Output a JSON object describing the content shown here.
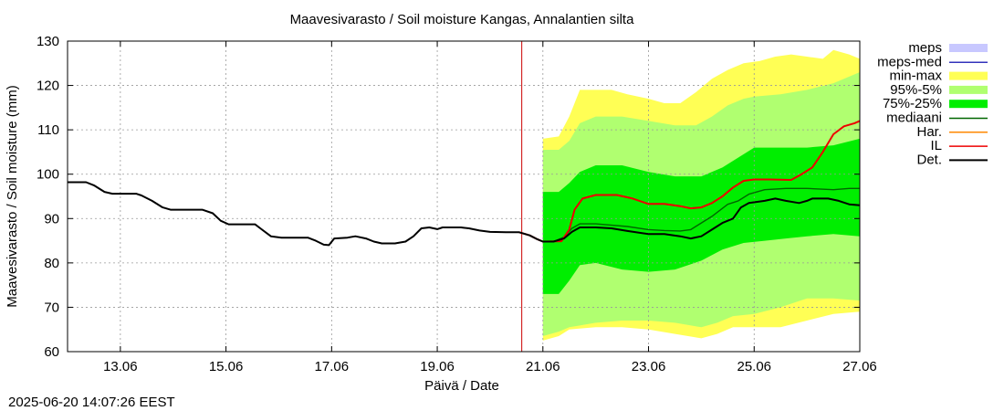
{
  "chart_data": {
    "type": "area",
    "title": "Maavesivarasto / Soil moisture   Kangas, Annalantien silta",
    "xlabel": "Päivä / Date",
    "ylabel": "Maavesivarasto / Soil moisture (mm)",
    "ylim": [
      60,
      130
    ],
    "yticks": [
      60,
      70,
      80,
      90,
      100,
      110,
      120,
      130
    ],
    "xlim": [
      12.0,
      27.0
    ],
    "xticks": [
      {
        "label": "13.06",
        "x": 13.0
      },
      {
        "label": "15.06",
        "x": 15.0
      },
      {
        "label": "17.06",
        "x": 17.0
      },
      {
        "label": "19.06",
        "x": 19.0
      },
      {
        "label": "21.06",
        "x": 21.0
      },
      {
        "label": "23.06",
        "x": 23.0
      },
      {
        "label": "25.06",
        "x": 25.0
      },
      {
        "label": "27.06",
        "x": 27.0
      }
    ],
    "grid": true,
    "legend_position": "right",
    "forecast_start_x": 20.6,
    "timestamp": "2025-06-20 14:07:26 EEST",
    "legend": [
      {
        "name": "meps",
        "kind": "band",
        "color": "#c8c8ff"
      },
      {
        "name": "meps-med",
        "kind": "line",
        "color": "#3333bb"
      },
      {
        "name": "min-max",
        "kind": "band",
        "color": "#ffff55"
      },
      {
        "name": "95%-5%",
        "kind": "band",
        "color": "#b0ff70"
      },
      {
        "name": "75%-25%",
        "kind": "band",
        "color": "#00ee00"
      },
      {
        "name": "mediaani",
        "kind": "line",
        "color": "#006600"
      },
      {
        "name": "Har.",
        "kind": "line",
        "color": "#ff8800"
      },
      {
        "name": "IL",
        "kind": "line",
        "color": "#ee0000"
      },
      {
        "name": "Det.",
        "kind": "line",
        "color": "#000000"
      }
    ],
    "bands": [
      {
        "name": "min-max",
        "color": "#ffff55",
        "upper": [
          [
            21.0,
            108
          ],
          [
            21.3,
            108.5
          ],
          [
            21.5,
            113
          ],
          [
            21.7,
            119
          ],
          [
            22.0,
            119
          ],
          [
            22.3,
            119
          ],
          [
            22.6,
            118
          ],
          [
            23.0,
            117
          ],
          [
            23.3,
            116
          ],
          [
            23.6,
            116
          ],
          [
            23.9,
            118.5
          ],
          [
            24.2,
            121.5
          ],
          [
            24.5,
            123.5
          ],
          [
            24.8,
            125
          ],
          [
            25.1,
            125.5
          ],
          [
            25.4,
            126.5
          ],
          [
            25.7,
            127
          ],
          [
            26.0,
            126.5
          ],
          [
            26.3,
            126
          ],
          [
            26.5,
            128
          ],
          [
            26.8,
            127
          ],
          [
            27.0,
            126
          ]
        ],
        "lower": [
          [
            21.0,
            62.5
          ],
          [
            21.3,
            63.5
          ],
          [
            21.5,
            65
          ],
          [
            22.0,
            65.5
          ],
          [
            22.5,
            65.5
          ],
          [
            23.0,
            65
          ],
          [
            23.5,
            64
          ],
          [
            24.0,
            63
          ],
          [
            24.3,
            64
          ],
          [
            24.6,
            65.5
          ],
          [
            25.0,
            65.5
          ],
          [
            25.5,
            65.5
          ],
          [
            26.0,
            67
          ],
          [
            26.5,
            68.5
          ],
          [
            27.0,
            69
          ]
        ]
      },
      {
        "name": "95%-5%",
        "color": "#b0ff70",
        "upper": [
          [
            21.0,
            105.5
          ],
          [
            21.3,
            105.5
          ],
          [
            21.5,
            107.5
          ],
          [
            21.7,
            111.5
          ],
          [
            22.0,
            113
          ],
          [
            22.5,
            113
          ],
          [
            23.0,
            112
          ],
          [
            23.5,
            111
          ],
          [
            23.9,
            111
          ],
          [
            24.2,
            113
          ],
          [
            24.5,
            115.5
          ],
          [
            24.8,
            117
          ],
          [
            25.0,
            117.5
          ],
          [
            25.5,
            118
          ],
          [
            26.0,
            119
          ],
          [
            26.5,
            120.5
          ],
          [
            27.0,
            123
          ]
        ],
        "lower": [
          [
            21.0,
            63.5
          ],
          [
            21.3,
            64.5
          ],
          [
            21.5,
            65.5
          ],
          [
            22.0,
            66.5
          ],
          [
            22.5,
            67
          ],
          [
            23.0,
            67
          ],
          [
            23.5,
            66.5
          ],
          [
            24.0,
            65.5
          ],
          [
            24.3,
            66.5
          ],
          [
            24.6,
            68
          ],
          [
            25.0,
            68.5
          ],
          [
            25.5,
            70
          ],
          [
            26.0,
            72
          ],
          [
            26.5,
            72
          ],
          [
            27.0,
            71.5
          ]
        ]
      },
      {
        "name": "75%-25%",
        "color": "#00ee00",
        "upper": [
          [
            21.0,
            96
          ],
          [
            21.3,
            96
          ],
          [
            21.5,
            98
          ],
          [
            21.7,
            100.5
          ],
          [
            22.0,
            102
          ],
          [
            22.5,
            102
          ],
          [
            23.0,
            100.5
          ],
          [
            23.5,
            99.5
          ],
          [
            24.0,
            99.5
          ],
          [
            24.4,
            101.5
          ],
          [
            24.8,
            104.5
          ],
          [
            25.0,
            106
          ],
          [
            25.5,
            106
          ],
          [
            26.0,
            106
          ],
          [
            26.5,
            106.5
          ],
          [
            27.0,
            108
          ]
        ],
        "lower": [
          [
            21.0,
            73
          ],
          [
            21.3,
            73
          ],
          [
            21.5,
            76
          ],
          [
            21.7,
            79.5
          ],
          [
            22.0,
            80
          ],
          [
            22.5,
            78.5
          ],
          [
            23.0,
            78
          ],
          [
            23.5,
            78.5
          ],
          [
            24.0,
            80.5
          ],
          [
            24.4,
            83
          ],
          [
            24.8,
            84.5
          ],
          [
            25.2,
            85
          ],
          [
            25.6,
            85.5
          ],
          [
            26.0,
            86
          ],
          [
            26.5,
            86.5
          ],
          [
            27.0,
            86
          ]
        ]
      }
    ],
    "series": [
      {
        "name": "Det.",
        "color": "#000000",
        "width": 2,
        "points": [
          [
            12.0,
            98.2
          ],
          [
            12.35,
            98.2
          ],
          [
            12.5,
            97.5
          ],
          [
            12.7,
            96
          ],
          [
            12.85,
            95.6
          ],
          [
            13.3,
            95.6
          ],
          [
            13.4,
            95.2
          ],
          [
            13.6,
            94
          ],
          [
            13.8,
            92.5
          ],
          [
            13.95,
            92
          ],
          [
            14.55,
            92
          ],
          [
            14.75,
            91.2
          ],
          [
            14.9,
            89.5
          ],
          [
            15.05,
            88.7
          ],
          [
            15.55,
            88.7
          ],
          [
            15.65,
            87.8
          ],
          [
            15.85,
            86
          ],
          [
            16.05,
            85.7
          ],
          [
            16.55,
            85.7
          ],
          [
            16.7,
            85
          ],
          [
            16.85,
            84.1
          ],
          [
            16.95,
            84
          ],
          [
            17.05,
            85.5
          ],
          [
            17.3,
            85.7
          ],
          [
            17.45,
            86
          ],
          [
            17.65,
            85.5
          ],
          [
            17.8,
            84.8
          ],
          [
            17.95,
            84.4
          ],
          [
            18.2,
            84.4
          ],
          [
            18.4,
            84.8
          ],
          [
            18.55,
            86
          ],
          [
            18.7,
            87.8
          ],
          [
            18.85,
            88
          ],
          [
            19.0,
            87.6
          ],
          [
            19.1,
            88
          ],
          [
            19.45,
            88
          ],
          [
            19.6,
            87.8
          ],
          [
            19.8,
            87.3
          ],
          [
            20.0,
            87
          ],
          [
            20.3,
            86.9
          ],
          [
            20.55,
            86.9
          ],
          [
            20.75,
            86.2
          ],
          [
            20.9,
            85.3
          ],
          [
            21.0,
            84.8
          ],
          [
            21.2,
            84.8
          ],
          [
            21.4,
            85.5
          ],
          [
            21.55,
            87
          ],
          [
            21.7,
            88
          ],
          [
            22.0,
            88
          ],
          [
            22.3,
            87.8
          ],
          [
            22.6,
            87.2
          ],
          [
            23.0,
            86.5
          ],
          [
            23.3,
            86.5
          ],
          [
            23.6,
            86
          ],
          [
            23.8,
            85.5
          ],
          [
            24.0,
            86
          ],
          [
            24.2,
            87.5
          ],
          [
            24.4,
            89
          ],
          [
            24.6,
            90
          ],
          [
            24.75,
            92.5
          ],
          [
            24.9,
            93.5
          ],
          [
            25.2,
            94
          ],
          [
            25.4,
            94.5
          ],
          [
            25.6,
            94
          ],
          [
            25.85,
            93.5
          ],
          [
            26.0,
            94
          ],
          [
            26.1,
            94.5
          ],
          [
            26.4,
            94.5
          ],
          [
            26.6,
            94
          ],
          [
            26.8,
            93.2
          ],
          [
            27.0,
            93
          ]
        ]
      },
      {
        "name": "mediaani",
        "color": "#006600",
        "width": 1.4,
        "points": [
          [
            20.55,
            86.9
          ],
          [
            20.75,
            86.2
          ],
          [
            20.9,
            85.3
          ],
          [
            21.0,
            84.8
          ],
          [
            21.2,
            84.8
          ],
          [
            21.4,
            85.8
          ],
          [
            21.55,
            87.8
          ],
          [
            21.7,
            88.8
          ],
          [
            22.0,
            88.8
          ],
          [
            22.6,
            88.2
          ],
          [
            23.0,
            87.5
          ],
          [
            23.3,
            87.3
          ],
          [
            23.6,
            87.2
          ],
          [
            23.8,
            87.5
          ],
          [
            24.0,
            89
          ],
          [
            24.2,
            90.5
          ],
          [
            24.5,
            93.2
          ],
          [
            24.7,
            94
          ],
          [
            24.9,
            95.5
          ],
          [
            25.2,
            96.5
          ],
          [
            25.6,
            96.8
          ],
          [
            26.0,
            96.8
          ],
          [
            26.5,
            96.5
          ],
          [
            26.8,
            96.8
          ],
          [
            27.0,
            96.8
          ]
        ]
      },
      {
        "name": "IL",
        "color": "#ee0000",
        "width": 2,
        "points": [
          [
            20.55,
            86.9
          ],
          [
            20.75,
            86.2
          ],
          [
            20.9,
            85.3
          ],
          [
            21.0,
            84.8
          ],
          [
            21.35,
            84.9
          ],
          [
            21.5,
            87.5
          ],
          [
            21.6,
            92
          ],
          [
            21.75,
            94.5
          ],
          [
            22.0,
            95.3
          ],
          [
            22.4,
            95.3
          ],
          [
            22.7,
            94.5
          ],
          [
            23.0,
            93.3
          ],
          [
            23.3,
            93.3
          ],
          [
            23.6,
            92.8
          ],
          [
            23.8,
            92.3
          ],
          [
            24.0,
            92.5
          ],
          [
            24.2,
            93.5
          ],
          [
            24.4,
            95
          ],
          [
            24.6,
            97
          ],
          [
            24.8,
            98.5
          ],
          [
            25.0,
            98.8
          ],
          [
            25.3,
            98.8
          ],
          [
            25.7,
            98.7
          ],
          [
            25.9,
            100
          ],
          [
            26.1,
            101.5
          ],
          [
            26.3,
            105
          ],
          [
            26.5,
            109
          ],
          [
            26.7,
            110.8
          ],
          [
            26.9,
            111.5
          ],
          [
            27.0,
            112
          ]
        ]
      }
    ]
  }
}
